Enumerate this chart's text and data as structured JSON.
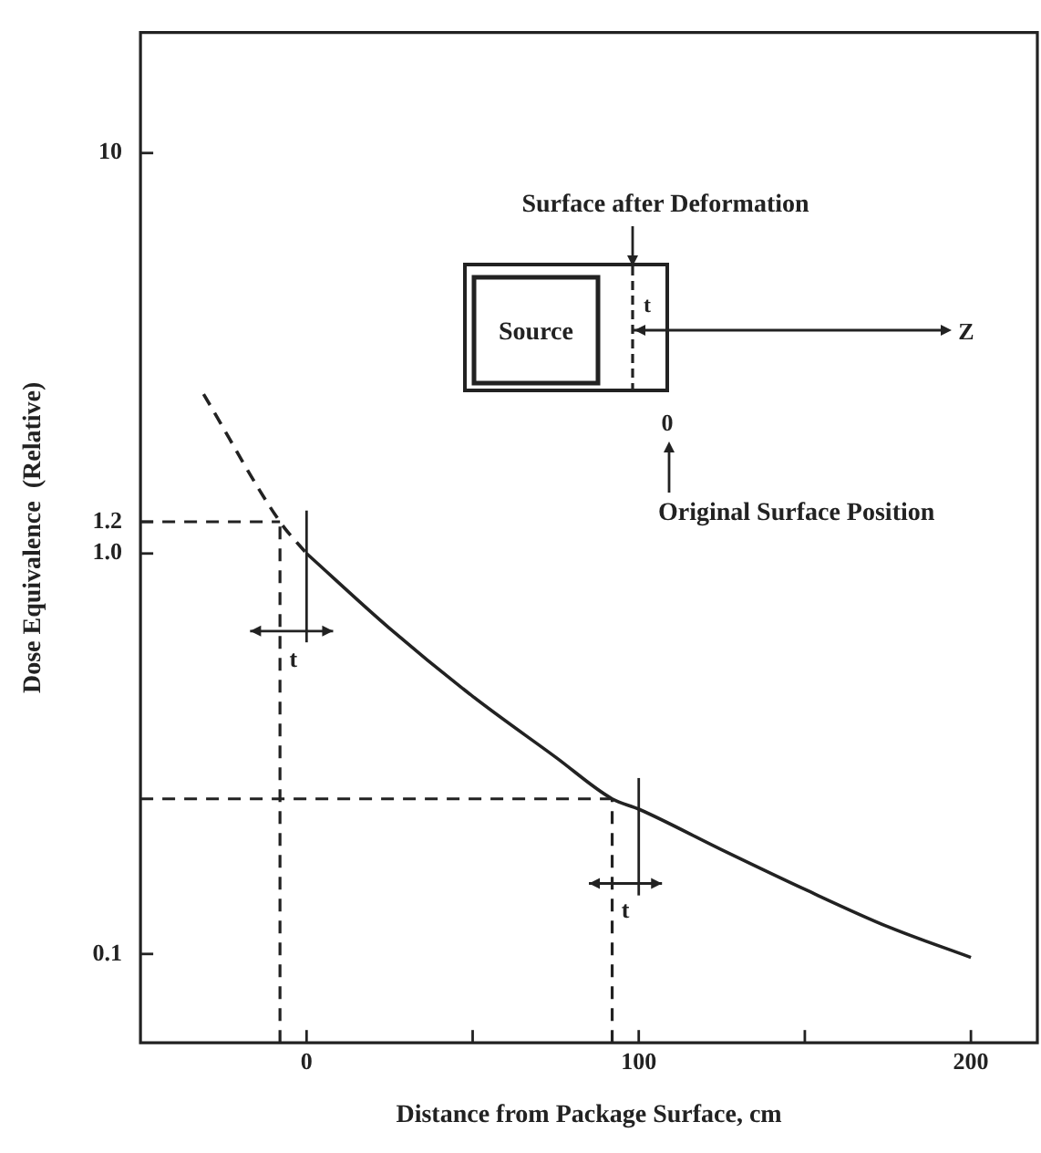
{
  "chart_data": {
    "type": "line",
    "xlabel": "Distance from Package Surface, cm",
    "ylabel": "Dose Equivalence  (Relative)",
    "xlim": [
      -50,
      220
    ],
    "xticks": [
      0,
      {
        "value": 50,
        "label": null
      },
      100,
      {
        "value": 150,
        "label": null
      },
      200
    ],
    "ylim": [
      0.06,
      20
    ],
    "yticks": [
      0.1,
      {
        "value": 1,
        "label": "1.0"
      },
      1.2,
      10
    ],
    "log": "y",
    "grid": false,
    "legend": false,
    "marker": "none",
    "series": [
      {
        "color": "#222222",
        "line_style": "dashed",
        "x": [
          -31,
          -8,
          0
        ],
        "values": [
          2.5,
          1.2,
          1.0
        ]
      },
      {
        "color": "#222222",
        "line_style": "solid",
        "x": [
          0,
          25,
          50,
          75,
          92,
          100,
          125,
          150,
          175,
          200
        ],
        "values": [
          1.0,
          0.65,
          0.44,
          0.31,
          0.244,
          0.23,
          0.182,
          0.145,
          0.117,
          0.098
        ]
      }
    ],
    "ref_lines": [
      {
        "axis": "y",
        "value": 1.2,
        "line_style": "dashed"
      },
      {
        "axis": "x",
        "value": -8,
        "line_style": "dashed"
      },
      {
        "axis": "y",
        "value": 0.244,
        "line_style": "dashed"
      },
      {
        "axis": "x",
        "value": 92,
        "line_style": "dashed"
      }
    ],
    "annotations": [
      "Surface after Deformation",
      "Source",
      "t",
      "Z",
      "0",
      "Original Surface Position",
      "t",
      "t"
    ]
  }
}
